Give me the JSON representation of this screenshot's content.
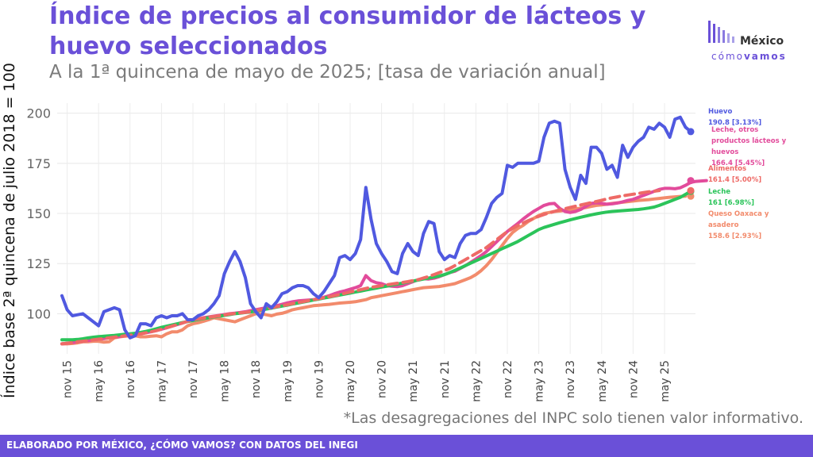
{
  "header": {
    "title": "Índice de precios al consumidor de lácteos y huevo seleccionados",
    "subtitle": "A la 1ª quincena de mayo de 2025; [tasa de variación anual]"
  },
  "logo": {
    "word": "México",
    "sub_light": "cómo",
    "sub_bold": "vamos"
  },
  "footnote": "*Las desagregaciones del INPC solo tienen valor informativo.",
  "footer": "ELABORADO POR MÉXICO, ¿CÓMO VAMOS? CON DATOS DEL INEGI",
  "chart_data": {
    "type": "line",
    "ylabel": "Índice base 2ª quincena de julio 2018 = 100",
    "xlabel": "",
    "ylim": [
      80,
      205
    ],
    "yticks": [
      100,
      125,
      150,
      175,
      200
    ],
    "grid": true,
    "x_tick_labels": [
      "nov 15",
      "may 16",
      "nov 16",
      "may 17",
      "nov 17",
      "may 18",
      "nov 18",
      "may 19",
      "nov 19",
      "may 20",
      "nov 20",
      "may 21",
      "nov 21",
      "may 22",
      "nov 22",
      "may 23",
      "nov 23",
      "may 24",
      "nov 24",
      "may 25"
    ],
    "x_tick_index": [
      1,
      7,
      13,
      19,
      25,
      31,
      37,
      43,
      49,
      55,
      61,
      67,
      73,
      79,
      85,
      91,
      97,
      103,
      109,
      115
    ],
    "series": [
      {
        "name": "Huevo",
        "value_label": "190.8 [3.13%]",
        "color": "#5059e0",
        "dashed": false,
        "values": [
          109,
          102,
          99,
          99.5,
          100,
          98,
          96,
          94,
          101,
          102,
          103,
          102,
          92,
          88,
          89,
          95,
          95,
          94,
          98,
          99,
          98,
          99,
          99,
          100,
          97,
          97,
          99,
          100,
          102,
          105,
          109,
          120,
          126,
          131,
          126,
          118,
          105,
          101,
          98,
          105,
          103,
          106,
          110,
          111,
          113,
          114,
          114,
          113,
          110,
          108,
          111,
          115,
          119,
          128,
          129,
          127,
          130,
          137,
          163,
          147,
          135,
          130,
          126,
          121,
          120,
          130,
          135,
          131,
          129,
          140,
          146,
          145,
          131,
          127,
          129,
          128,
          135,
          139,
          140,
          140,
          142,
          148,
          155,
          158,
          160,
          174,
          173,
          175,
          175,
          175,
          175,
          176,
          188,
          195,
          196,
          195,
          172,
          163,
          157,
          169,
          165,
          183,
          183,
          180,
          172,
          174,
          168,
          184,
          178,
          183,
          186,
          188,
          193,
          192,
          195,
          193,
          188,
          197,
          198,
          193,
          190.8
        ]
      },
      {
        "name": "Leche, otros productos lácteos y huevos",
        "value_label": "166.4 [5.45%]",
        "color": "#e24b9b",
        "dashed": false,
        "values": [
          85,
          85.3,
          85.6,
          86,
          86.3,
          86.6,
          87,
          87.3,
          87.6,
          88,
          88.3,
          88.6,
          89,
          89.3,
          89.6,
          90,
          90.5,
          91,
          91.6,
          92.3,
          93,
          93.8,
          94.6,
          95.4,
          96.2,
          97,
          97.5,
          98,
          98.4,
          98.8,
          99.2,
          99.6,
          100,
          100.3,
          100.6,
          101,
          101.5,
          102,
          102.5,
          103,
          103.5,
          104,
          104.7,
          105.4,
          106,
          106.4,
          106.6,
          106.8,
          107,
          107.5,
          108.2,
          109,
          110,
          110.8,
          111.4,
          112.2,
          113,
          114,
          119,
          116.5,
          115.5,
          115,
          114,
          113.7,
          113.5,
          114,
          115,
          116,
          117,
          117.5,
          117.3,
          117.7,
          118.5,
          119.5,
          120.5,
          121.2,
          122.6,
          124,
          125.6,
          127.3,
          129,
          131,
          133.5,
          136,
          138.5,
          141,
          143,
          145,
          147.2,
          149.2,
          151,
          152.5,
          154,
          154.8,
          155,
          152.5,
          151,
          150.5,
          151,
          152,
          153.5,
          155,
          155.3,
          155,
          154.6,
          154.8,
          155.2,
          155.8,
          156.5,
          157,
          158,
          159,
          160,
          161,
          162,
          162.5,
          162.5,
          162.3,
          162.8,
          164,
          165.5,
          166,
          166.2,
          166.4
        ]
      },
      {
        "name": "Alimentos",
        "value_label": "161.4 [5.00%]",
        "color": "#ee6a66",
        "dashed": true,
        "values": [
          85,
          85.3,
          85.6,
          86,
          86.3,
          86.6,
          87,
          87.3,
          87.6,
          88,
          88.3,
          88.6,
          89,
          89.3,
          89.6,
          90,
          90.5,
          91,
          91.6,
          92.3,
          93,
          93.8,
          94.6,
          95.4,
          96.2,
          97,
          97.4,
          97.8,
          98.2,
          98.6,
          99,
          99.4,
          99.8,
          100.1,
          100.4,
          100.7,
          101,
          101.5,
          102,
          102.5,
          103,
          103.5,
          104,
          104.5,
          105,
          105.5,
          106,
          106.5,
          107,
          107.5,
          108,
          108.5,
          109,
          109.6,
          110.2,
          110.8,
          111.4,
          112,
          112.6,
          113.2,
          113.6,
          114,
          114.4,
          114.8,
          115.2,
          115.6,
          116,
          116.5,
          117,
          117.8,
          118.6,
          119.5,
          120.5,
          121.5,
          122.6,
          124,
          125.5,
          127,
          128.5,
          130,
          131.5,
          133,
          135,
          137,
          139,
          141,
          142.5,
          144,
          145.2,
          146.4,
          147.5,
          148.6,
          149.5,
          150.3,
          151,
          151.8,
          152.4,
          153,
          153.6,
          154.2,
          154.8,
          155.4,
          156,
          156.6,
          157.2,
          157.8,
          158.3,
          158.8,
          159.2,
          159.6,
          160,
          160.4,
          160.8,
          161.1,
          161.4
        ]
      },
      {
        "name": "Leche",
        "value_label": "161 [6.98%]",
        "color": "#2bc45a",
        "dashed": false,
        "values": [
          87,
          87,
          87,
          87.2,
          87.5,
          88,
          88.3,
          88.6,
          88.8,
          89,
          89.2,
          89.5,
          89.8,
          90,
          90.3,
          90.7,
          91.2,
          91.8,
          92.5,
          93.2,
          93.8,
          94.4,
          95,
          95.6,
          96.1,
          96.6,
          97.1,
          97.6,
          98,
          98.4,
          98.8,
          99.2,
          99.6,
          100,
          100.3,
          100.6,
          100.9,
          101.3,
          101.8,
          102.3,
          102.8,
          103.3,
          103.8,
          104.3,
          104.8,
          105.3,
          105.8,
          106.3,
          106.8,
          107.3,
          107.8,
          108.3,
          108.8,
          109.3,
          109.8,
          110.3,
          110.8,
          111.3,
          111.8,
          112.3,
          112.8,
          113.3,
          113.8,
          114.3,
          114.8,
          115.3,
          115.8,
          116.3,
          116.8,
          117.3,
          117.8,
          118.3,
          118.8,
          119.5,
          120.5,
          121.6,
          122.8,
          124,
          125.2,
          126.4,
          127.6,
          128.8,
          130,
          131.2,
          132.4,
          133.6,
          134.8,
          136,
          137.5,
          139,
          140.5,
          142,
          143,
          143.8,
          144.6,
          145.4,
          146.1,
          146.8,
          147.5,
          148.1,
          148.7,
          149.3,
          149.8,
          150.3,
          150.7,
          151,
          151.2,
          151.4,
          151.6,
          151.8,
          152,
          152.3,
          152.7,
          153.2,
          154,
          155,
          156,
          157,
          158,
          159.5,
          161
        ]
      },
      {
        "name": "Queso Oaxaca y asadero",
        "value_label": "158.6 [2.93%]",
        "color": "#f28b6c",
        "dashed": false,
        "values": [
          85,
          85,
          85.2,
          85.5,
          86,
          86,
          86.3,
          86.3,
          85.8,
          86,
          88,
          88.5,
          88.8,
          89,
          89,
          88.5,
          88.5,
          88.8,
          89,
          88.5,
          90,
          91,
          91,
          92,
          94,
          95,
          95.5,
          96.2,
          97,
          98,
          97.5,
          97,
          96.5,
          96,
          97,
          98,
          99,
          100,
          100,
          99.5,
          99,
          99.8,
          100.2,
          101,
          102,
          102.5,
          103,
          103.5,
          104,
          104.2,
          104.5,
          104.7,
          105,
          105.3,
          105.5,
          105.7,
          106,
          106.5,
          107,
          108,
          108.5,
          109,
          109.5,
          110,
          110.5,
          111,
          111.5,
          112,
          112.5,
          113,
          113.2,
          113.4,
          113.6,
          114,
          114.5,
          115,
          116,
          117,
          118,
          119.5,
          121.5,
          124,
          127,
          130.5,
          134,
          137.5,
          140.5,
          142.5,
          144,
          146,
          147.5,
          149,
          150,
          150.5,
          151,
          151.2,
          151.5,
          152,
          152.3,
          152.6,
          153,
          153.5,
          154,
          154.3,
          154.6,
          155,
          155.3,
          155.6,
          155.9,
          156.2,
          156.5,
          156.7,
          156.9,
          157.2,
          157.5,
          157.8,
          158.1,
          158.3,
          158.5,
          158.6
        ]
      }
    ],
    "end_labels": [
      {
        "text": "Huevo"
      },
      {
        "text": "190.8 [3.13%]"
      },
      {
        "text": "Leche, otros"
      },
      {
        "text": "productos lácteos y"
      },
      {
        "text": "huevos"
      },
      {
        "text": "166.4 [5.45%]"
      },
      {
        "text": "Alimentos"
      },
      {
        "text": "161.4 [5.00%]"
      },
      {
        "text": "Leche"
      },
      {
        "text": "161 [6.98%]"
      },
      {
        "text": "Queso Oaxaca y"
      },
      {
        "text": "asadero"
      },
      {
        "text": "158.6 [2.93%]"
      }
    ]
  }
}
